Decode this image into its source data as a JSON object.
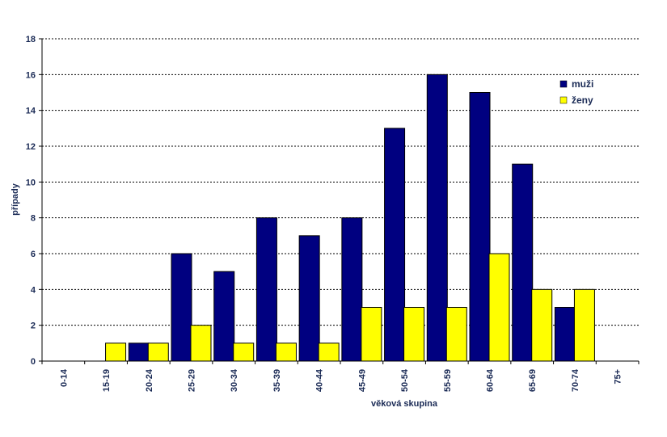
{
  "chart_data": {
    "type": "bar",
    "categories": [
      "0-14",
      "15-19",
      "20-24",
      "25-29",
      "30-34",
      "35-39",
      "40-44",
      "45-49",
      "50-54",
      "55-59",
      "60-64",
      "65-69",
      "70-74",
      "75+"
    ],
    "series": [
      {
        "name": "muži",
        "color": "#000080",
        "values": [
          0,
          0,
          1,
          6,
          5,
          8,
          7,
          8,
          13,
          16,
          15,
          11,
          3,
          0
        ]
      },
      {
        "name": "ženy",
        "color": "#ffff00",
        "values": [
          0,
          1,
          1,
          2,
          1,
          1,
          1,
          3,
          3,
          3,
          6,
          4,
          4,
          0
        ]
      }
    ],
    "xlabel": "věková skupina",
    "ylabel": "případy",
    "ylim": [
      0,
      18
    ],
    "yticks": [
      0,
      2,
      4,
      6,
      8,
      10,
      12,
      14,
      16,
      18
    ],
    "grid": true,
    "legend_position": "top-right"
  }
}
